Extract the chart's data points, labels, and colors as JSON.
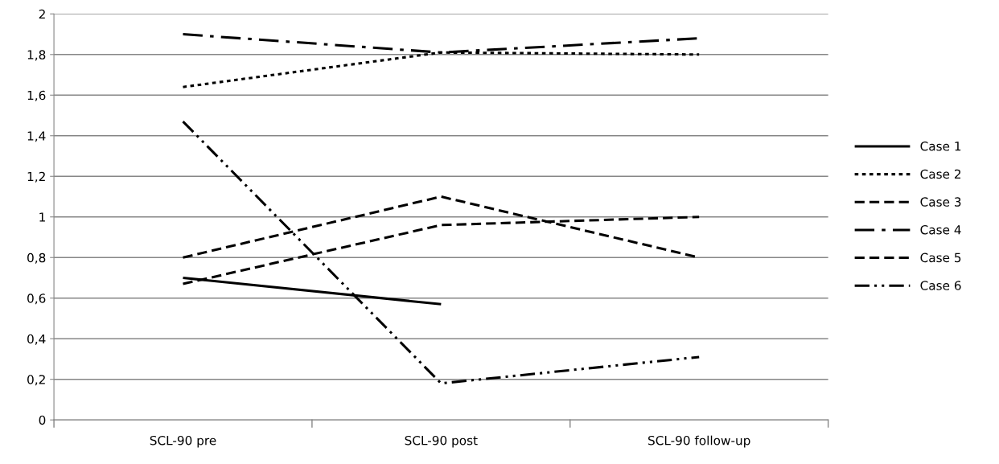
{
  "chart_data": {
    "type": "line",
    "categories": [
      "SCL-90 pre",
      "SCL-90 post",
      "SCL-90 follow-up"
    ],
    "series": [
      {
        "name": "Case 1",
        "color": "#000000",
        "line_style": "solid",
        "values": [
          0.7,
          0.57,
          null
        ]
      },
      {
        "name": "Case 2",
        "color": "#000000",
        "line_style": "dotted",
        "values": [
          1.64,
          1.81,
          1.8
        ]
      },
      {
        "name": "Case 3",
        "color": "#000000",
        "line_style": "dashed",
        "values": [
          0.8,
          1.1,
          0.8
        ]
      },
      {
        "name": "Case 4",
        "color": "#000000",
        "line_style": "dashdot",
        "values": [
          1.9,
          1.81,
          1.88
        ]
      },
      {
        "name": "Case 5",
        "color": "#000000",
        "line_style": "dashed",
        "values": [
          0.67,
          0.96,
          1.0
        ]
      },
      {
        "name": "Case 6",
        "color": "#000000",
        "line_style": "dashdotdot",
        "values": [
          1.47,
          0.18,
          0.31
        ]
      }
    ],
    "ylim": [
      0,
      2
    ],
    "yticks": [
      0,
      {
        "value": 0.2,
        "label": "0,2"
      },
      {
        "value": 0.4,
        "label": "0,4"
      },
      {
        "value": 0.6,
        "label": "0,6"
      },
      {
        "value": 0.8,
        "label": "0,8"
      },
      1,
      {
        "value": 1.2,
        "label": "1,2"
      },
      {
        "value": 1.4,
        "label": "1,4"
      },
      {
        "value": 1.6,
        "label": "1,6"
      },
      {
        "value": 1.8,
        "label": "1,8"
      },
      2
    ],
    "grid": "y",
    "legend": "right",
    "marker": "none"
  }
}
